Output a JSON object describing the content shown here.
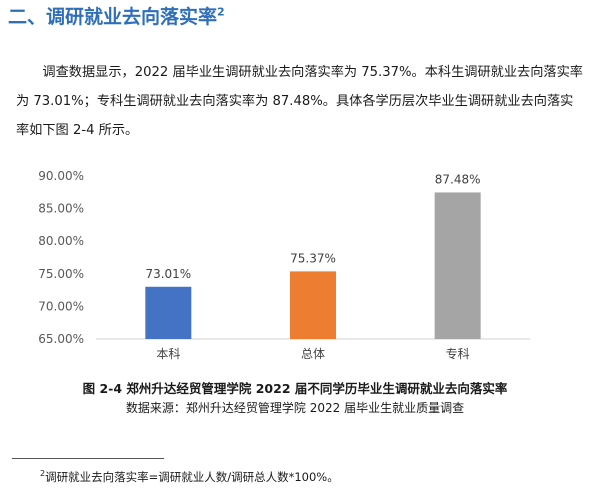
{
  "section": {
    "title": "二、调研就业去向落实率",
    "title_sup": "2"
  },
  "paragraph": "调查数据显示，2022 届毕业生调研就业去向落实率为 75.37%。本科生调研就业去向落实率为 73.01%；专科生调研就业去向落实率为 87.48%。具体各学历层次毕业生调研就业去向落实率如下图 2-4 所示。",
  "chart_data": {
    "type": "bar",
    "categories": [
      "本科",
      "总体",
      "专科"
    ],
    "values": [
      73.01,
      75.37,
      87.48
    ],
    "value_labels": [
      "73.01%",
      "75.37%",
      "87.48%"
    ],
    "colors": [
      "#4472c4",
      "#ed7d31",
      "#a5a5a5"
    ],
    "ylim": [
      65,
      90
    ],
    "yticks": [
      "65.00%",
      "70.00%",
      "75.00%",
      "80.00%",
      "85.00%",
      "90.00%"
    ],
    "ytick_values": [
      65,
      70,
      75,
      80,
      85,
      90
    ],
    "grid": false,
    "legend": "none"
  },
  "caption": {
    "title": "图 2-4 郑州升达经贸管理学院 2022 届不同学历毕业生调研就业去向落实率",
    "source": "数据来源：郑州升达经贸管理学院 2022 届毕业生就业质量调查"
  },
  "footnote": {
    "marker": "2",
    "text": "调研就业去向落实率=调研就业人数/调研总人数*100%。"
  }
}
